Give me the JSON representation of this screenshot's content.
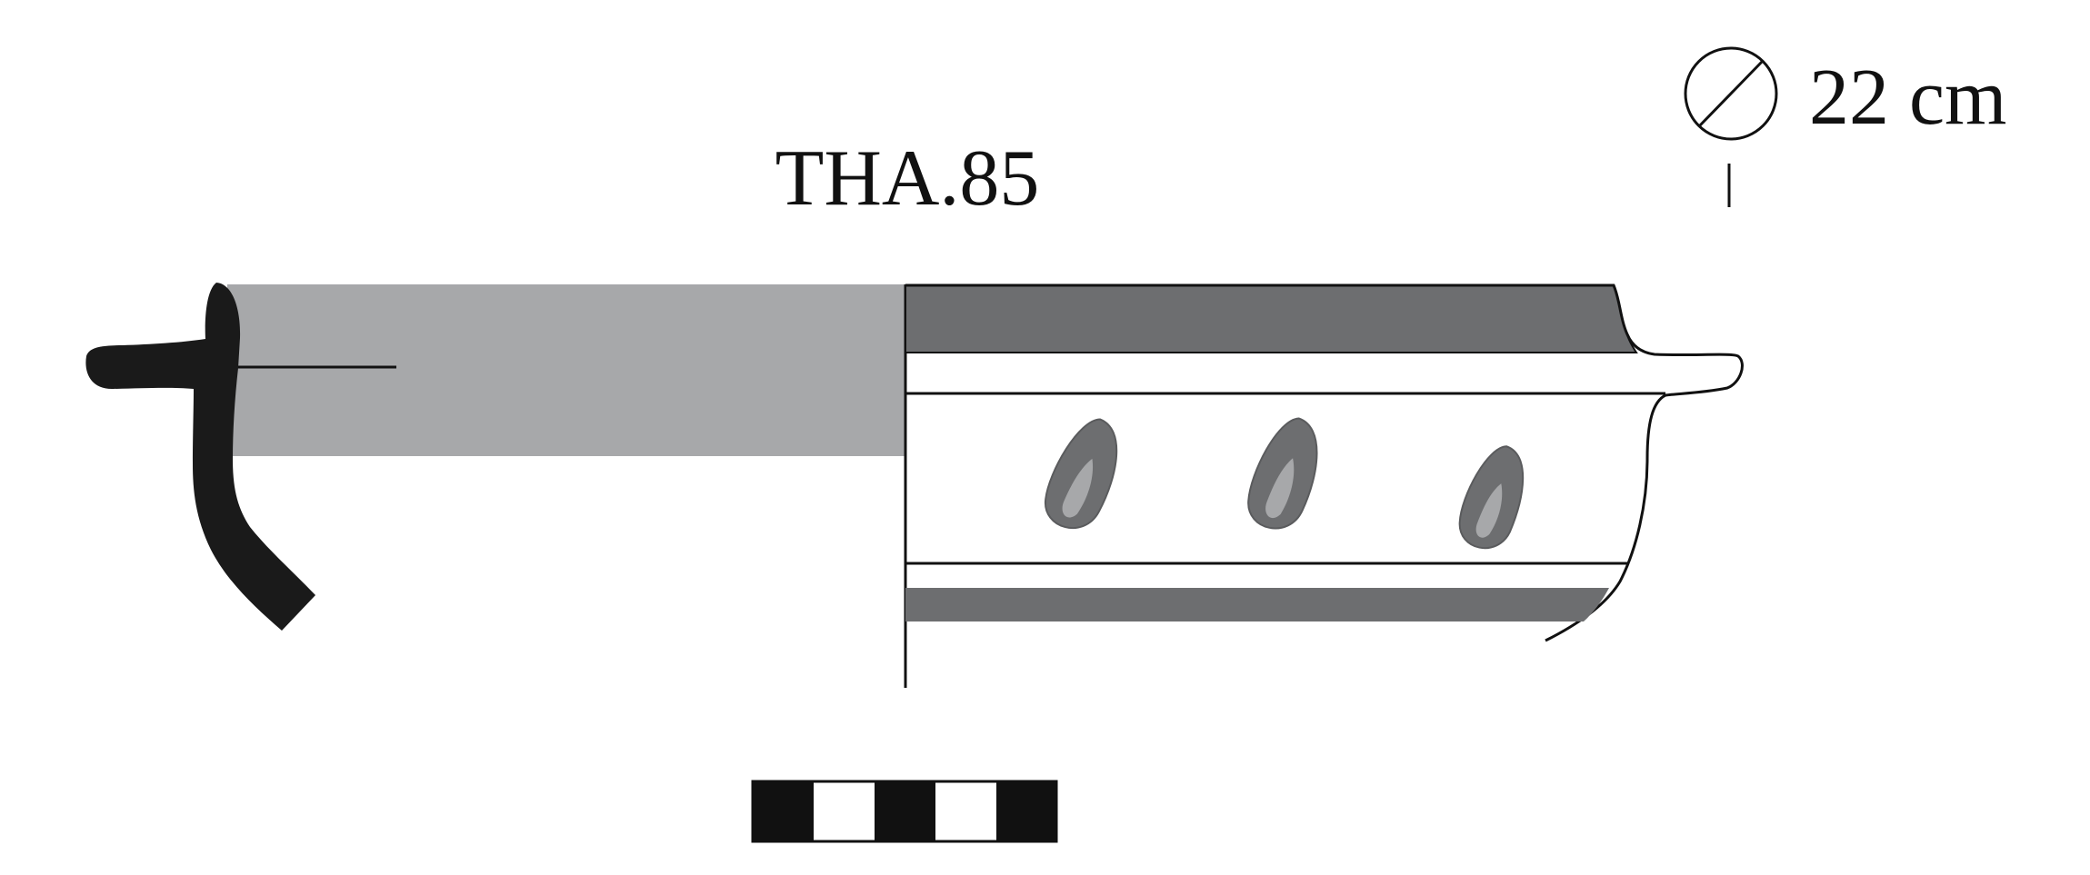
{
  "catalogue_label": "THA.85",
  "diameter": {
    "symbol_icon": "diameter-symbol-icon",
    "value_text": "22 cm"
  },
  "colors": {
    "outline": "#111111",
    "section_profile": "#1a1a1a",
    "interior_fill": "#a7a8aa",
    "painted_band": "#6d6e70",
    "motif_inner": "#a7a8aa",
    "background": "#ffffff"
  },
  "scale_bar": {
    "segments": [
      "black",
      "white",
      "black",
      "white",
      "black"
    ]
  }
}
